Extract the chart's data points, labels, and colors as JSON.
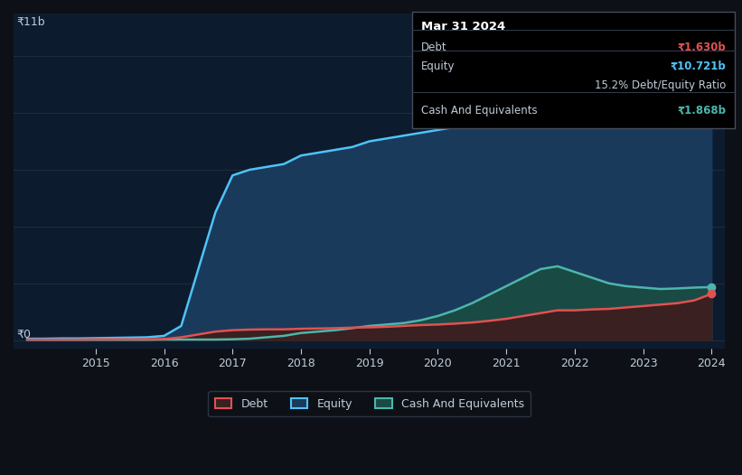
{
  "bg_color": "#0d1117",
  "plot_bg_color": "#0d1b2e",
  "years": [
    2014,
    2014.25,
    2014.5,
    2014.75,
    2015,
    2015.25,
    2015.5,
    2015.75,
    2016,
    2016.25,
    2016.5,
    2016.75,
    2017,
    2017.25,
    2017.5,
    2017.75,
    2018,
    2018.25,
    2018.5,
    2018.75,
    2019,
    2019.25,
    2019.5,
    2019.75,
    2020,
    2020.25,
    2020.5,
    2020.75,
    2021,
    2021.25,
    2021.5,
    2021.75,
    2022,
    2022.25,
    2022.5,
    2022.75,
    2023,
    2023.25,
    2023.5,
    2023.75,
    2024
  ],
  "debt": [
    0.02,
    0.02,
    0.02,
    0.02,
    0.03,
    0.03,
    0.03,
    0.03,
    0.04,
    0.1,
    0.2,
    0.3,
    0.35,
    0.37,
    0.38,
    0.38,
    0.4,
    0.41,
    0.42,
    0.44,
    0.45,
    0.47,
    0.5,
    0.53,
    0.55,
    0.58,
    0.62,
    0.68,
    0.75,
    0.85,
    0.95,
    1.05,
    1.05,
    1.08,
    1.1,
    1.15,
    1.2,
    1.25,
    1.3,
    1.4,
    1.63
  ],
  "equity": [
    0.05,
    0.05,
    0.06,
    0.06,
    0.07,
    0.08,
    0.09,
    0.1,
    0.15,
    0.5,
    2.5,
    4.5,
    5.8,
    6.0,
    6.1,
    6.2,
    6.5,
    6.6,
    6.7,
    6.8,
    7.0,
    7.1,
    7.2,
    7.3,
    7.4,
    7.5,
    7.6,
    7.8,
    8.0,
    8.5,
    9.0,
    9.2,
    9.3,
    9.5,
    9.7,
    9.9,
    10.0,
    10.2,
    10.4,
    10.6,
    10.721
  ],
  "cash": [
    0.01,
    0.01,
    0.01,
    0.01,
    0.01,
    0.01,
    0.01,
    0.01,
    0.02,
    0.02,
    0.02,
    0.02,
    0.03,
    0.05,
    0.1,
    0.15,
    0.25,
    0.3,
    0.35,
    0.42,
    0.5,
    0.55,
    0.6,
    0.7,
    0.85,
    1.05,
    1.3,
    1.6,
    1.9,
    2.2,
    2.5,
    2.6,
    2.4,
    2.2,
    2.0,
    1.9,
    1.85,
    1.8,
    1.82,
    1.85,
    1.868
  ],
  "debt_color": "#e05252",
  "equity_color": "#4fc3f7",
  "cash_color": "#4db6ac",
  "equity_fill": "#1a3a5c",
  "cash_fill": "#1a4a44",
  "debt_fill": "#3a2020",
  "grid_color": "#1e2d3d",
  "text_color": "#c0ccd8",
  "y_label_top": "₹11b",
  "y_label_zero": "₹0",
  "x_ticks": [
    2015,
    2016,
    2017,
    2018,
    2019,
    2020,
    2021,
    2022,
    2023,
    2024
  ],
  "tooltip_bg": "#000000",
  "tooltip_title": "Mar 31 2024",
  "tooltip_debt_label": "Debt",
  "tooltip_debt_value": "₹1.630b",
  "tooltip_equity_label": "Equity",
  "tooltip_equity_value": "₹10.721b",
  "tooltip_ratio": "15.2% Debt/Equity Ratio",
  "tooltip_cash_label": "Cash And Equivalents",
  "tooltip_cash_value": "₹1.868b",
  "ymax": 11.5,
  "ymin": -0.3
}
